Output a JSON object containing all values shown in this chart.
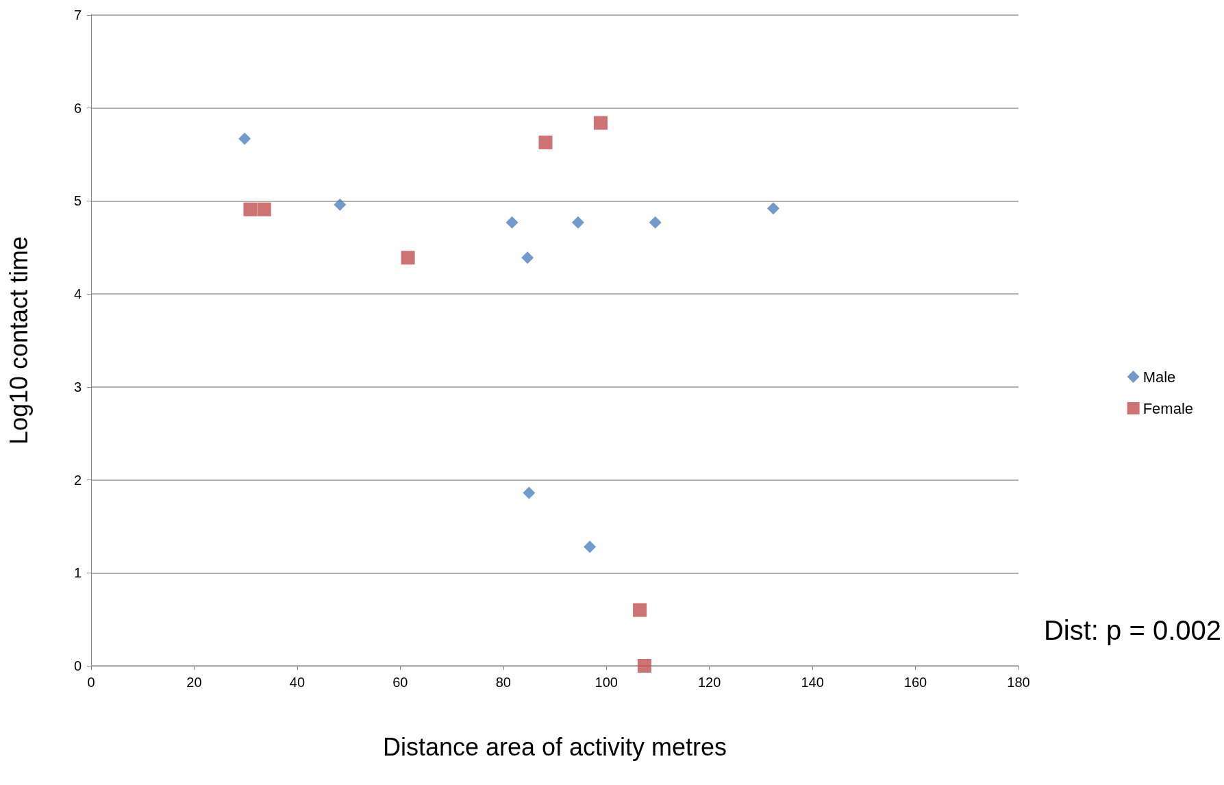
{
  "chart_data": {
    "type": "scatter",
    "xlabel": "Distance area of activity metres",
    "ylabel": "Log10 contact time",
    "xlim": [
      0,
      180
    ],
    "xticks": [
      0,
      20,
      40,
      60,
      80,
      100,
      120,
      140,
      160,
      180
    ],
    "ylim": [
      0,
      7
    ],
    "yticks": [
      0,
      1,
      2,
      3,
      4,
      5,
      6,
      7
    ],
    "grid": "y",
    "legend": "right",
    "annotations": [
      "Dist: p = 0.002"
    ],
    "series": [
      {
        "name": "Male",
        "color": "#4f81bd",
        "marker": "diamond",
        "x": [
          29.8,
          48.3,
          81.7,
          84.7,
          94.5,
          109.5,
          132.4,
          85.0,
          96.8
        ],
        "values": [
          5.67,
          4.96,
          4.77,
          4.39,
          4.77,
          4.77,
          4.92,
          1.86,
          1.28
        ]
      },
      {
        "name": "Female",
        "color": "#c0504d",
        "marker": "square",
        "x": [
          30.9,
          33.6,
          61.5,
          88.2,
          98.9,
          106.5,
          107.4
        ],
        "values": [
          4.91,
          4.91,
          4.39,
          5.63,
          5.84,
          0.6,
          0
        ]
      }
    ]
  }
}
